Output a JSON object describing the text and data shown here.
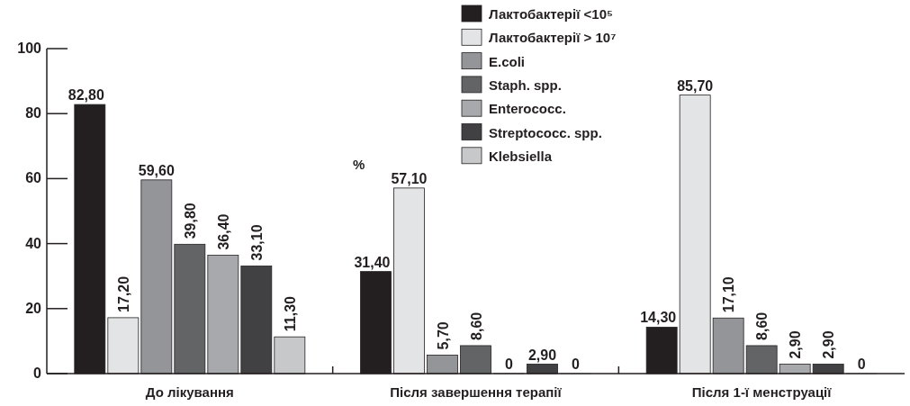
{
  "chart_data": {
    "type": "bar",
    "categories": [
      "До лікування",
      "Після завершення терапії",
      "Після 1-ї менструації"
    ],
    "series": [
      {
        "name": "Лактобактерії <10⁵",
        "color": "#231f20",
        "values": [
          82.8,
          31.4,
          14.3
        ],
        "value_labels": [
          "82,80",
          "31,40",
          "14,30"
        ]
      },
      {
        "name": "Лактобактерії > 10⁷",
        "color": "#e3e4e6",
        "values": [
          17.2,
          57.1,
          85.7
        ],
        "value_labels": [
          "17,20",
          "57,10",
          "85,70"
        ]
      },
      {
        "name": "E.coli",
        "color": "#939598",
        "values": [
          59.6,
          5.7,
          17.1
        ],
        "value_labels": [
          "59,60",
          "5,70",
          "17,10"
        ]
      },
      {
        "name": "Staph. spp.",
        "color": "#636466",
        "values": [
          39.8,
          8.6,
          8.6
        ],
        "value_labels": [
          "39,80",
          "8,60",
          "8,60"
        ]
      },
      {
        "name": "Enterococc.",
        "color": "#a7a9ac",
        "values": [
          36.4,
          0,
          2.9
        ],
        "value_labels": [
          "36,40",
          "0",
          "2,90"
        ]
      },
      {
        "name": "Streptococc. spp.",
        "color": "#414042",
        "values": [
          33.1,
          2.9,
          2.9
        ],
        "value_labels": [
          "33,10",
          "2,90",
          "2,90"
        ]
      },
      {
        "name": "Klebsiella",
        "color": "#c7c8ca",
        "values": [
          11.3,
          0,
          0
        ],
        "value_labels": [
          "11,30",
          "0",
          "0"
        ]
      }
    ],
    "ylim": [
      0,
      100
    ],
    "yticks": [
      0,
      20,
      40,
      60,
      80,
      100
    ],
    "grid": false,
    "legend": "top right",
    "annotations": [
      "%"
    ]
  }
}
